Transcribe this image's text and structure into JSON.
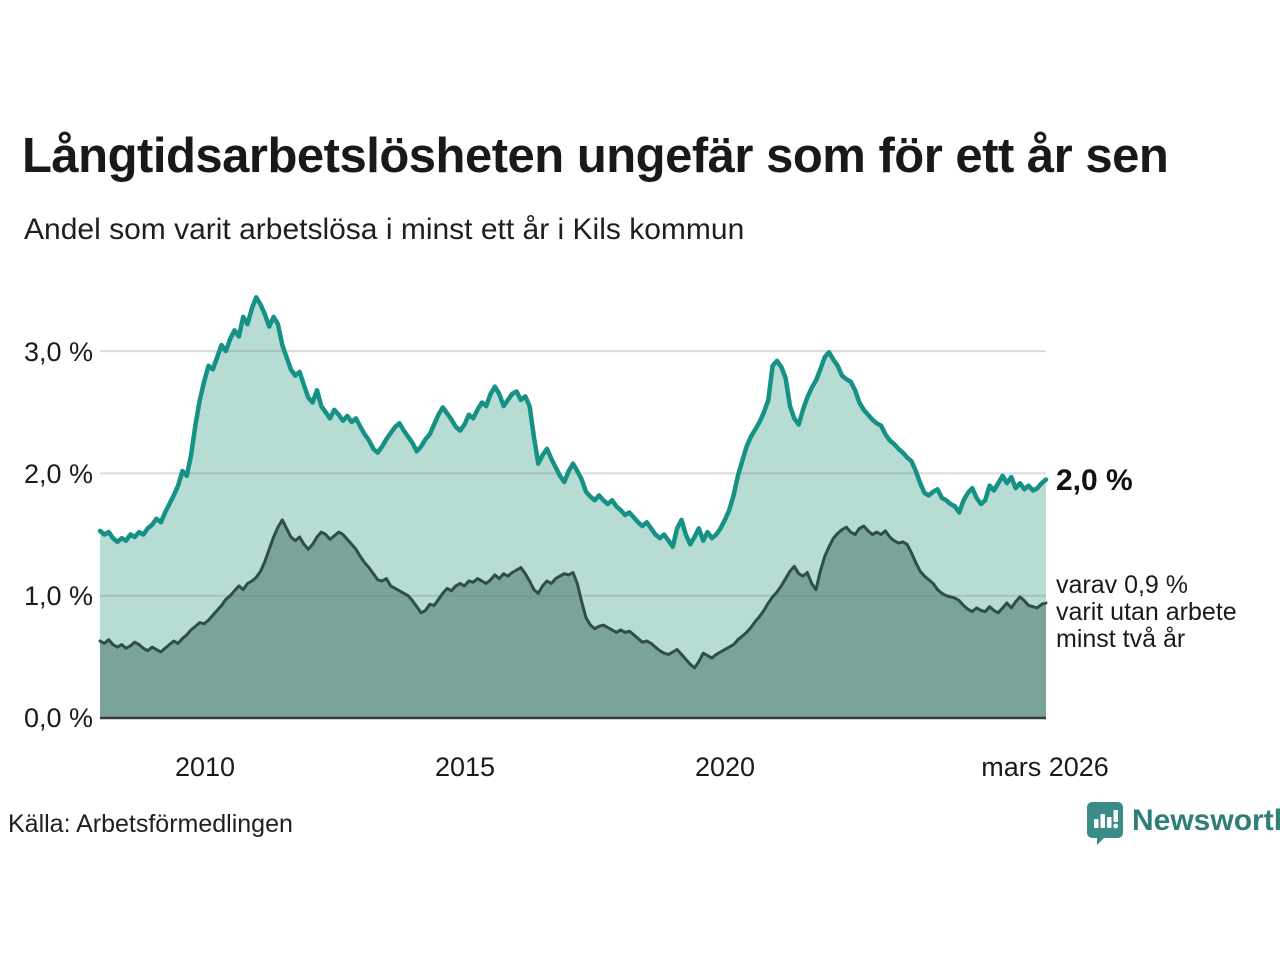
{
  "header": {
    "title": "Långtidsarbetslösheten ungefär som för ett år sen",
    "subtitle": "Andel som varit arbetslösa i minst ett år i Kils kommun"
  },
  "annotations": {
    "last_value_label": "2,0 %",
    "note_line1": "varav 0,9 %",
    "note_line2": "varit utan arbete",
    "note_line3": "minst två år"
  },
  "footer": {
    "source": "Källa: Arbetsförmedlingen",
    "brand_name": "Newsworthy"
  },
  "colors": {
    "series1_line": "#169185",
    "series1_fill": "#b6dcd3",
    "series2_line": "#2f4e48",
    "series2_fill": "#7aa39a",
    "gridline": "#7d7d7d",
    "baseline": "#3b3b3b",
    "brand_teal": "#3a8c86"
  },
  "chart_data": {
    "type": "area",
    "title": "Långtidsarbetslösheten ungefär som för ett år sen",
    "subtitle": "Andel som varit arbetslösa i minst ett år i Kils kommun",
    "x_start_year": 2008,
    "x_step": "month",
    "x_end_label": "mars 2026",
    "x_tick_labels": [
      "2010",
      "2015",
      "2020",
      "mars 2026"
    ],
    "y_tick_labels": [
      "3,0 %",
      "2,0 %",
      "1,0 %",
      "0,0 %"
    ],
    "ylim": [
      0,
      3.6
    ],
    "y_gridlines": [
      1,
      2,
      3
    ],
    "grid": true,
    "legend_position": "right-annotations",
    "series": [
      {
        "name": "Arbetslösa minst ett år",
        "end_label": "2,0 %",
        "line_color": "#169185",
        "fill_color": "#b6dcd3",
        "values": [
          1.53,
          1.5,
          1.52,
          1.47,
          1.44,
          1.47,
          1.45,
          1.5,
          1.48,
          1.52,
          1.5,
          1.55,
          1.58,
          1.63,
          1.6,
          1.68,
          1.75,
          1.82,
          1.9,
          2.02,
          1.98,
          2.15,
          2.4,
          2.6,
          2.75,
          2.88,
          2.85,
          2.95,
          3.05,
          3.0,
          3.1,
          3.17,
          3.12,
          3.28,
          3.22,
          3.35,
          3.44,
          3.38,
          3.3,
          3.2,
          3.28,
          3.22,
          3.05,
          2.95,
          2.85,
          2.8,
          2.83,
          2.72,
          2.62,
          2.58,
          2.68,
          2.55,
          2.5,
          2.45,
          2.52,
          2.48,
          2.43,
          2.47,
          2.42,
          2.45,
          2.38,
          2.32,
          2.27,
          2.2,
          2.17,
          2.22,
          2.28,
          2.33,
          2.38,
          2.41,
          2.35,
          2.3,
          2.25,
          2.18,
          2.22,
          2.28,
          2.32,
          2.4,
          2.48,
          2.54,
          2.49,
          2.44,
          2.38,
          2.35,
          2.4,
          2.48,
          2.45,
          2.52,
          2.58,
          2.55,
          2.65,
          2.71,
          2.65,
          2.55,
          2.6,
          2.65,
          2.67,
          2.6,
          2.63,
          2.55,
          2.3,
          2.08,
          2.15,
          2.2,
          2.12,
          2.05,
          1.98,
          1.93,
          2.02,
          2.08,
          2.02,
          1.95,
          1.85,
          1.81,
          1.78,
          1.82,
          1.78,
          1.75,
          1.78,
          1.73,
          1.7,
          1.66,
          1.68,
          1.64,
          1.6,
          1.57,
          1.6,
          1.55,
          1.5,
          1.47,
          1.5,
          1.45,
          1.4,
          1.55,
          1.62,
          1.5,
          1.42,
          1.48,
          1.55,
          1.45,
          1.52,
          1.47,
          1.5,
          1.55,
          1.62,
          1.7,
          1.82,
          1.98,
          2.1,
          2.22,
          2.3,
          2.36,
          2.42,
          2.5,
          2.6,
          2.88,
          2.92,
          2.87,
          2.78,
          2.55,
          2.45,
          2.4,
          2.52,
          2.62,
          2.7,
          2.76,
          2.85,
          2.95,
          2.99,
          2.93,
          2.88,
          2.8,
          2.77,
          2.75,
          2.68,
          2.58,
          2.52,
          2.48,
          2.44,
          2.41,
          2.39,
          2.32,
          2.27,
          2.24,
          2.2,
          2.17,
          2.13,
          2.1,
          2.02,
          1.92,
          1.84,
          1.82,
          1.85,
          1.87,
          1.8,
          1.78,
          1.75,
          1.73,
          1.68,
          1.78,
          1.84,
          1.88,
          1.8,
          1.75,
          1.78,
          1.9,
          1.86,
          1.92,
          1.98,
          1.92,
          1.97,
          1.88,
          1.92,
          1.87,
          1.9,
          1.86,
          1.88,
          1.92,
          1.95
        ]
      },
      {
        "name": "varav utan arbete minst två år",
        "end_label": "0,9 %",
        "line_color": "#2f4e48",
        "fill_color": "#7aa39a",
        "values": [
          0.63,
          0.61,
          0.64,
          0.6,
          0.58,
          0.6,
          0.57,
          0.59,
          0.62,
          0.6,
          0.57,
          0.55,
          0.58,
          0.56,
          0.54,
          0.57,
          0.6,
          0.63,
          0.61,
          0.65,
          0.68,
          0.72,
          0.75,
          0.78,
          0.77,
          0.8,
          0.84,
          0.88,
          0.92,
          0.97,
          1.0,
          1.04,
          1.08,
          1.05,
          1.1,
          1.12,
          1.15,
          1.2,
          1.28,
          1.38,
          1.48,
          1.56,
          1.62,
          1.55,
          1.48,
          1.45,
          1.48,
          1.42,
          1.38,
          1.42,
          1.48,
          1.52,
          1.5,
          1.46,
          1.49,
          1.52,
          1.5,
          1.46,
          1.42,
          1.38,
          1.32,
          1.27,
          1.23,
          1.18,
          1.13,
          1.12,
          1.14,
          1.08,
          1.06,
          1.04,
          1.02,
          1.0,
          0.96,
          0.91,
          0.86,
          0.88,
          0.93,
          0.92,
          0.97,
          1.02,
          1.06,
          1.04,
          1.08,
          1.1,
          1.08,
          1.12,
          1.11,
          1.14,
          1.12,
          1.1,
          1.13,
          1.17,
          1.14,
          1.18,
          1.16,
          1.19,
          1.21,
          1.23,
          1.18,
          1.12,
          1.05,
          1.02,
          1.08,
          1.12,
          1.1,
          1.14,
          1.16,
          1.18,
          1.17,
          1.19,
          1.1,
          0.95,
          0.82,
          0.76,
          0.73,
          0.75,
          0.76,
          0.74,
          0.72,
          0.7,
          0.72,
          0.7,
          0.71,
          0.68,
          0.65,
          0.62,
          0.63,
          0.61,
          0.58,
          0.55,
          0.53,
          0.52,
          0.54,
          0.56,
          0.52,
          0.48,
          0.44,
          0.41,
          0.46,
          0.53,
          0.51,
          0.49,
          0.52,
          0.54,
          0.56,
          0.58,
          0.6,
          0.64,
          0.67,
          0.7,
          0.74,
          0.79,
          0.83,
          0.88,
          0.94,
          0.99,
          1.03,
          1.08,
          1.14,
          1.2,
          1.24,
          1.18,
          1.16,
          1.19,
          1.1,
          1.05,
          1.2,
          1.32,
          1.4,
          1.47,
          1.51,
          1.54,
          1.56,
          1.52,
          1.5,
          1.55,
          1.57,
          1.53,
          1.5,
          1.52,
          1.5,
          1.53,
          1.48,
          1.45,
          1.43,
          1.44,
          1.42,
          1.35,
          1.27,
          1.2,
          1.16,
          1.13,
          1.1,
          1.05,
          1.02,
          1.0,
          0.99,
          0.98,
          0.96,
          0.92,
          0.89,
          0.87,
          0.9,
          0.88,
          0.87,
          0.91,
          0.88,
          0.86,
          0.9,
          0.94,
          0.9,
          0.95,
          0.99,
          0.96,
          0.92,
          0.91,
          0.9,
          0.93,
          0.94
        ]
      }
    ]
  }
}
